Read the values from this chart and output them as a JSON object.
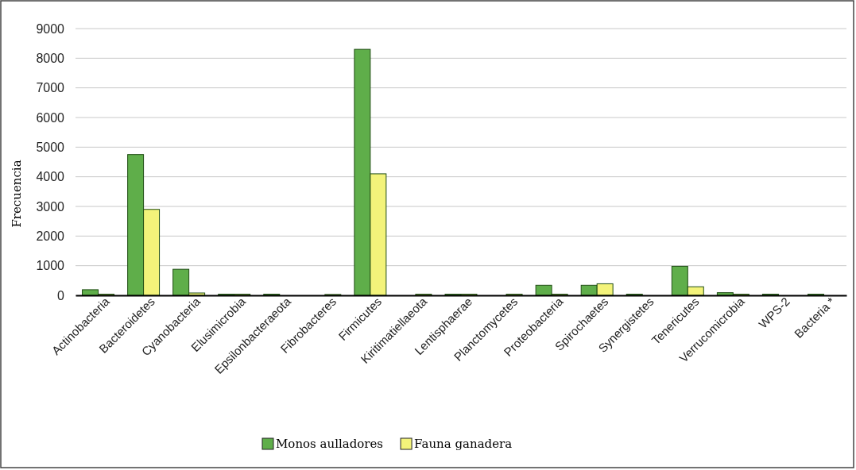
{
  "chart_data": {
    "type": "bar",
    "ylabel": "Frecuencia",
    "categories": [
      "Actinobacteria",
      "Bacteroidetes",
      "Cyanobacteria",
      "Elusimicrobia",
      "Epsilonbacteraeota",
      "Fibrobacteres",
      "Firmicutes",
      "Kiritimatiellaeota",
      "Lentisphaerae",
      "Planctomycetes",
      "Proteobacteria",
      "Spirochaetes",
      "Synergistetes",
      "Tenericutes",
      "Verrucomicrobia",
      "WPS-2",
      "Bacteria *"
    ],
    "series": [
      {
        "name": "Monos aulladores",
        "color": "#5fae4a",
        "values": [
          190,
          4750,
          880,
          40,
          40,
          0,
          8300,
          0,
          40,
          0,
          340,
          340,
          40,
          980,
          90,
          40,
          40
        ]
      },
      {
        "name": "Fauna ganadera",
        "color": "#f3f37a",
        "values": [
          40,
          2900,
          80,
          40,
          0,
          30,
          4100,
          40,
          40,
          40,
          40,
          390,
          0,
          290,
          40,
          0,
          0
        ]
      }
    ],
    "ylim": [
      0,
      9000
    ],
    "yticks": [
      0,
      1000,
      2000,
      3000,
      4000,
      5000,
      6000,
      7000,
      8000,
      9000
    ],
    "grid": "y",
    "legend": "bottom"
  }
}
